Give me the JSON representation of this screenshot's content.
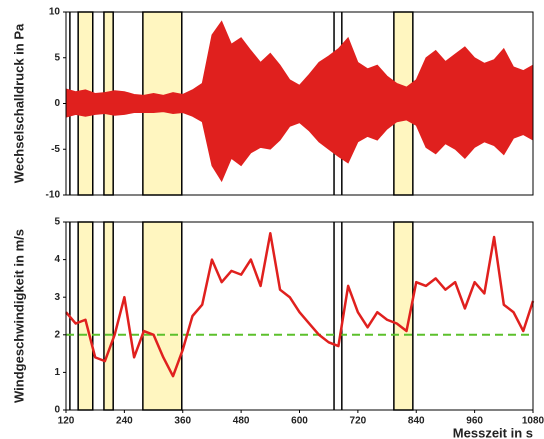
{
  "chart_data": [
    {
      "type": "area",
      "ylabel": "Wechselschalldruck in Pa",
      "color": "#e0201e",
      "xlim": [
        120,
        1080
      ],
      "ylim": [
        -10,
        10
      ],
      "yticks": [
        -10,
        -5,
        0,
        5,
        10
      ],
      "x": [
        120,
        140,
        160,
        180,
        200,
        220,
        240,
        260,
        280,
        300,
        320,
        340,
        360,
        380,
        400,
        420,
        440,
        460,
        480,
        500,
        520,
        540,
        560,
        580,
        600,
        620,
        640,
        660,
        680,
        700,
        720,
        740,
        760,
        780,
        800,
        820,
        840,
        860,
        880,
        900,
        920,
        940,
        960,
        980,
        1000,
        1020,
        1040,
        1060,
        1080
      ],
      "upper": [
        1.6,
        1.3,
        1.5,
        1.1,
        1.2,
        1.4,
        1.3,
        1.0,
        0.9,
        1.1,
        0.9,
        1.2,
        1.0,
        1.5,
        2.2,
        7.5,
        9.0,
        6.5,
        7.2,
        5.8,
        4.5,
        5.5,
        4.2,
        2.6,
        2.0,
        3.2,
        4.5,
        5.2,
        6.0,
        7.2,
        4.5,
        3.8,
        4.2,
        3.0,
        2.2,
        1.8,
        2.6,
        5.0,
        5.8,
        4.6,
        5.4,
        6.2,
        5.0,
        4.4,
        4.8,
        6.0,
        4.0,
        3.6,
        4.2
      ],
      "lower": [
        -1.5,
        -1.2,
        -1.4,
        -1.2,
        -1.1,
        -1.3,
        -1.2,
        -1.0,
        -1.0,
        -1.0,
        -0.9,
        -1.1,
        -1.0,
        -1.4,
        -2.0,
        -6.8,
        -8.5,
        -6.0,
        -6.8,
        -5.4,
        -4.8,
        -5.0,
        -4.0,
        -2.5,
        -2.1,
        -3.0,
        -4.2,
        -5.0,
        -5.8,
        -6.5,
        -4.2,
        -3.6,
        -4.0,
        -2.8,
        -2.0,
        -1.8,
        -2.4,
        -4.8,
        -5.5,
        -4.4,
        -5.0,
        -6.0,
        -4.8,
        -4.2,
        -4.6,
        -5.6,
        -3.8,
        -3.4,
        -4.0
      ],
      "bands": [
        [
          145,
          175
        ],
        [
          198,
          217
        ],
        [
          278,
          358
        ],
        [
          794,
          833
        ]
      ],
      "band_color": "#fff6c0",
      "marker_lines": [
        128,
        671,
        687
      ]
    },
    {
      "type": "line",
      "ylabel": "Windgeschwindigkeit in m/s",
      "xlabel": "Messzeit in s",
      "color": "#e0201e",
      "xlim": [
        120,
        1080
      ],
      "xticks": [
        120,
        240,
        360,
        480,
        600,
        720,
        840,
        960,
        1080
      ],
      "ylim": [
        0,
        5
      ],
      "yticks": [
        0,
        1,
        2,
        3,
        4,
        5
      ],
      "x": [
        120,
        140,
        160,
        180,
        200,
        220,
        240,
        260,
        280,
        300,
        320,
        340,
        360,
        380,
        400,
        420,
        440,
        460,
        480,
        500,
        520,
        540,
        560,
        580,
        600,
        620,
        640,
        660,
        680,
        700,
        720,
        740,
        760,
        780,
        800,
        820,
        840,
        860,
        880,
        900,
        920,
        940,
        960,
        980,
        1000,
        1020,
        1040,
        1060,
        1080
      ],
      "values": [
        2.6,
        2.3,
        2.4,
        1.4,
        1.3,
        2.0,
        3.0,
        1.4,
        2.1,
        2.0,
        1.4,
        0.9,
        1.6,
        2.5,
        2.8,
        4.0,
        3.4,
        3.7,
        3.6,
        4.0,
        3.3,
        4.7,
        3.2,
        3.0,
        2.6,
        2.3,
        2.0,
        1.8,
        1.7,
        3.3,
        2.6,
        2.2,
        2.6,
        2.4,
        2.3,
        2.1,
        3.4,
        3.3,
        3.5,
        3.2,
        3.4,
        2.7,
        3.4,
        3.1,
        4.6,
        2.8,
        2.6,
        2.1,
        2.9
      ],
      "reference": 2,
      "reference_color": "#5cc02c",
      "bands": [
        [
          145,
          175
        ],
        [
          198,
          217
        ],
        [
          278,
          358
        ],
        [
          794,
          833
        ]
      ],
      "band_color": "#fff6c0",
      "marker_lines": [
        128,
        671,
        687
      ]
    }
  ]
}
